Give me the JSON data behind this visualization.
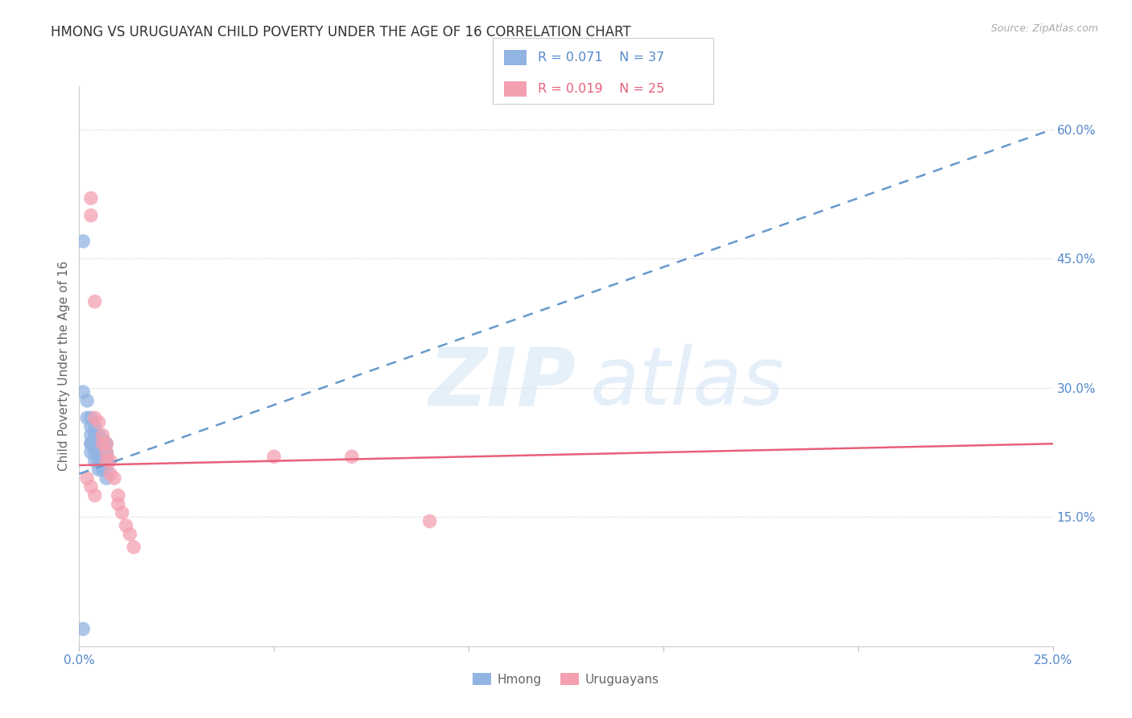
{
  "title": "HMONG VS URUGUAYAN CHILD POVERTY UNDER THE AGE OF 16 CORRELATION CHART",
  "source": "Source: ZipAtlas.com",
  "ylabel": "Child Poverty Under the Age of 16",
  "xlim": [
    0.0,
    0.25
  ],
  "ylim": [
    0.0,
    0.65
  ],
  "background_color": "#ffffff",
  "hmong_color": "#92b4e3",
  "uruguayan_color": "#f4a0b0",
  "hmong_line_color": "#6699cc",
  "uruguayan_line_color": "#e8607a",
  "hmong_scatter_x": [
    0.001,
    0.001,
    0.002,
    0.002,
    0.003,
    0.003,
    0.003,
    0.003,
    0.003,
    0.003,
    0.004,
    0.004,
    0.004,
    0.004,
    0.004,
    0.004,
    0.005,
    0.005,
    0.005,
    0.005,
    0.005,
    0.005,
    0.005,
    0.006,
    0.006,
    0.006,
    0.006,
    0.006,
    0.006,
    0.006,
    0.007,
    0.007,
    0.007,
    0.007,
    0.007,
    0.007,
    0.001
  ],
  "hmong_scatter_y": [
    0.47,
    0.295,
    0.285,
    0.265,
    0.265,
    0.255,
    0.245,
    0.235,
    0.235,
    0.225,
    0.255,
    0.245,
    0.235,
    0.23,
    0.225,
    0.215,
    0.245,
    0.235,
    0.235,
    0.225,
    0.22,
    0.215,
    0.205,
    0.24,
    0.235,
    0.23,
    0.225,
    0.22,
    0.21,
    0.205,
    0.235,
    0.225,
    0.22,
    0.215,
    0.205,
    0.195,
    0.02
  ],
  "uruguayan_scatter_x": [
    0.003,
    0.003,
    0.004,
    0.004,
    0.005,
    0.006,
    0.006,
    0.007,
    0.007,
    0.007,
    0.008,
    0.008,
    0.009,
    0.01,
    0.01,
    0.011,
    0.012,
    0.013,
    0.014,
    0.05,
    0.07,
    0.09,
    0.002,
    0.003,
    0.004
  ],
  "uruguayan_scatter_y": [
    0.52,
    0.5,
    0.4,
    0.265,
    0.26,
    0.245,
    0.235,
    0.235,
    0.225,
    0.215,
    0.215,
    0.2,
    0.195,
    0.175,
    0.165,
    0.155,
    0.14,
    0.13,
    0.115,
    0.22,
    0.22,
    0.145,
    0.195,
    0.185,
    0.175
  ],
  "hmong_trendline_x": [
    0.0,
    0.25
  ],
  "hmong_trendline_y": [
    0.2,
    0.6
  ],
  "uruguayan_trendline_x": [
    0.0,
    0.25
  ],
  "uruguayan_trendline_y": [
    0.21,
    0.235
  ],
  "grid_color": "#cccccc",
  "title_color": "#333333",
  "tick_color": "#5588cc",
  "axis_label_color": "#666666",
  "title_fontsize": 12,
  "axis_label_fontsize": 11,
  "tick_fontsize": 11,
  "legend_r_hmong": "R = 0.071",
  "legend_n_hmong": "N = 37",
  "legend_r_uru": "R = 0.019",
  "legend_n_uru": "N = 25",
  "ytick_positions": [
    0.15,
    0.3,
    0.45,
    0.6
  ],
  "ytick_labels": [
    "15.0%",
    "30.0%",
    "45.0%",
    "60.0%"
  ],
  "xtick_positions": [
    0.0,
    0.05,
    0.1,
    0.15,
    0.2,
    0.25
  ],
  "xtick_labels": [
    "0.0%",
    "",
    "",
    "",
    "",
    "25.0%"
  ]
}
